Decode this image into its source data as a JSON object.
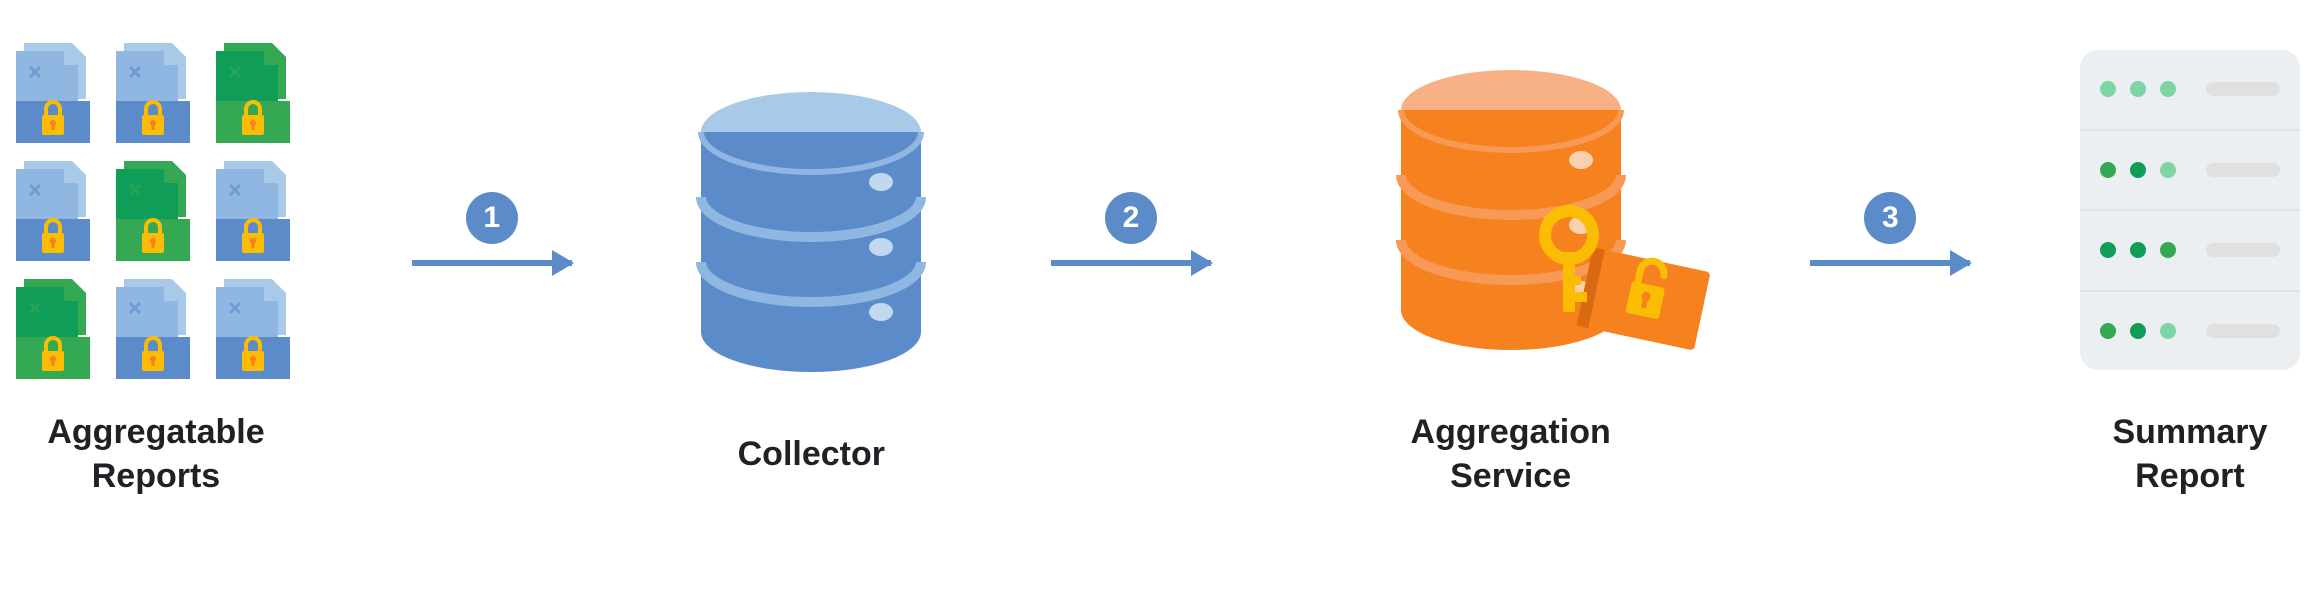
{
  "colors": {
    "blue_mid": "#5b8bc9",
    "blue_light": "#8fb7e2",
    "blue_lighter": "#a9c9e8",
    "blue_pale": "#c2d8ef",
    "green": "#0f9d58",
    "green_mid": "#34a853",
    "orange": "#f5811f",
    "orange_light": "#f8b085",
    "amber": "#fbbc04",
    "gray_bg": "#eceff1",
    "gray_bar": "#e0e0e0",
    "text": "#202124",
    "white": "#ffffff"
  },
  "stages": {
    "reports": {
      "label": "Aggregatable\nReports",
      "grid": [
        [
          "blue",
          "blue",
          "green"
        ],
        [
          "blue",
          "green",
          "blue"
        ],
        [
          "green",
          "blue",
          "blue"
        ]
      ]
    },
    "collector": {
      "label": "Collector"
    },
    "aggregation": {
      "label": "Aggregation\nService"
    },
    "summary": {
      "label": "Summary\nReport"
    }
  },
  "steps": {
    "s1": {
      "num": "1"
    },
    "s2": {
      "num": "2"
    },
    "s3": {
      "num": "3"
    }
  },
  "cylinder_collector": {
    "top_fill": "#a9c9e8",
    "body_fill": "#5b8bc9",
    "band_fill": "#8fb7e2",
    "dot_fill": "#c2d8ef"
  },
  "cylinder_agg": {
    "top_fill": "#f8b085",
    "body_fill": "#f5811f",
    "band_fill": "#f89a55",
    "dot_fill": "#fbd0b0"
  },
  "summary_server": {
    "rows": 4,
    "leds_per_row": 3,
    "led_colors": [
      [
        "#7dd4a5",
        "#7dd4a5",
        "#7dd4a5"
      ],
      [
        "#34a853",
        "#0f9d58",
        "#7dd4a5"
      ],
      [
        "#0f9d58",
        "#0f9d58",
        "#34a853"
      ],
      [
        "#34a853",
        "#0f9d58",
        "#7dd4a5"
      ]
    ]
  }
}
